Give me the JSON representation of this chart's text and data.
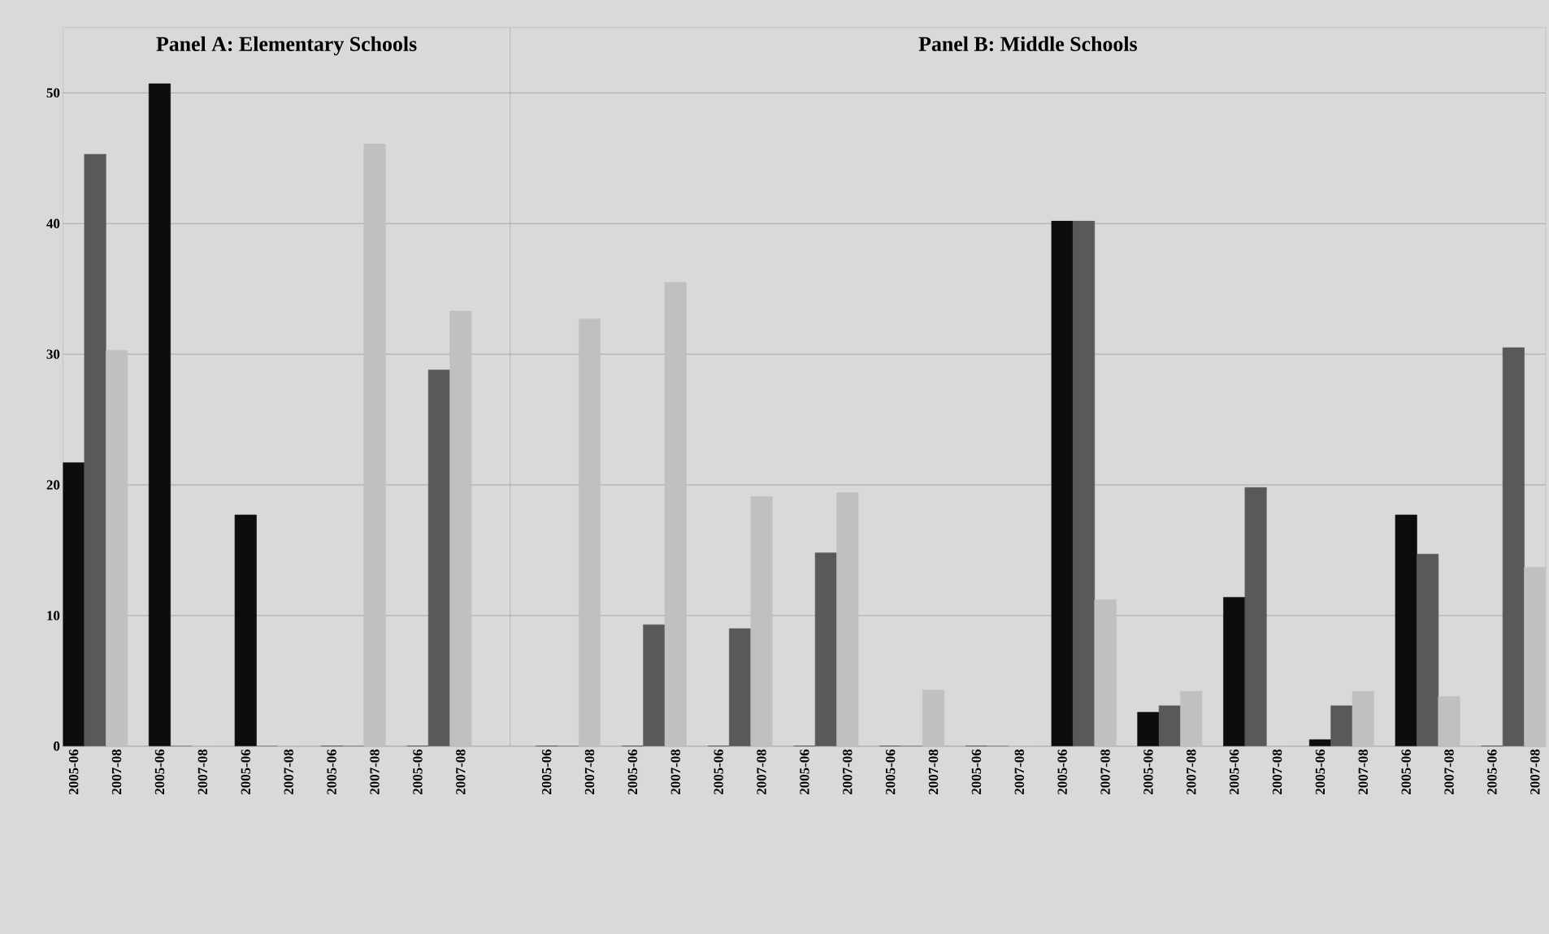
{
  "chart_data": [
    {
      "type": "bar",
      "title": "Panel A: Elementary Schools",
      "categories": [
        "2005-06",
        "2007-08",
        "2005-06",
        "2007-08",
        "2005-06",
        "2007-08",
        "2005-06",
        "2007-08",
        "2005-06",
        "2007-08"
      ],
      "series": [
        {
          "color": "#0d0d0d",
          "values": [
            21.7,
            null,
            50.7,
            null,
            17.7,
            null,
            0,
            null,
            0,
            null
          ]
        },
        {
          "color": "#595959",
          "values": [
            45.3,
            null,
            0,
            null,
            0,
            null,
            0,
            null,
            28.8,
            null
          ]
        },
        {
          "color": "#c0c0c0",
          "values": [
            null,
            30.3,
            null,
            0,
            null,
            0,
            null,
            46.1,
            null,
            33.3
          ]
        }
      ],
      "ylim": [
        0,
        55
      ],
      "yticks": [
        0,
        10,
        20,
        30,
        40,
        50
      ],
      "grid": "y"
    },
    {
      "type": "bar",
      "title": "Panel B:  Middle Schools",
      "categories": [
        "2005-06",
        "2007-08",
        "2005-06",
        "2007-08",
        "2005-06",
        "2007-08",
        "2005-06",
        "2007-08",
        "2005-06",
        "2007-08",
        "2005-06",
        "2007-08",
        "2005-06",
        "2007-08",
        "2005-06",
        "2007-08",
        "2005-06",
        "2007-08",
        "2005-06",
        "2007-08",
        "2005-06",
        "2007-08",
        "2005-06",
        "2007-08"
      ],
      "series": [
        {
          "color": "#0d0d0d",
          "values": [
            0,
            null,
            0,
            null,
            0,
            null,
            0,
            null,
            0,
            null,
            0,
            null,
            40.2,
            null,
            2.6,
            null,
            11.4,
            null,
            0.5,
            null,
            17.7,
            null,
            0,
            null
          ]
        },
        {
          "color": "#595959",
          "values": [
            0,
            null,
            9.3,
            null,
            9.0,
            null,
            14.8,
            null,
            0,
            null,
            0,
            null,
            40.2,
            null,
            3.1,
            null,
            19.8,
            null,
            3.1,
            null,
            14.7,
            null,
            30.5,
            null
          ]
        },
        {
          "color": "#c0c0c0",
          "values": [
            null,
            32.7,
            null,
            35.5,
            null,
            19.1,
            null,
            19.4,
            null,
            4.3,
            null,
            0,
            null,
            11.2,
            null,
            4.2,
            null,
            0,
            null,
            4.2,
            null,
            3.8,
            null,
            13.7
          ]
        }
      ],
      "ylim": [
        0,
        55
      ],
      "yticks": [
        0,
        10,
        20,
        30,
        40,
        50
      ],
      "grid": "y",
      "tick_labels": "x"
    }
  ]
}
